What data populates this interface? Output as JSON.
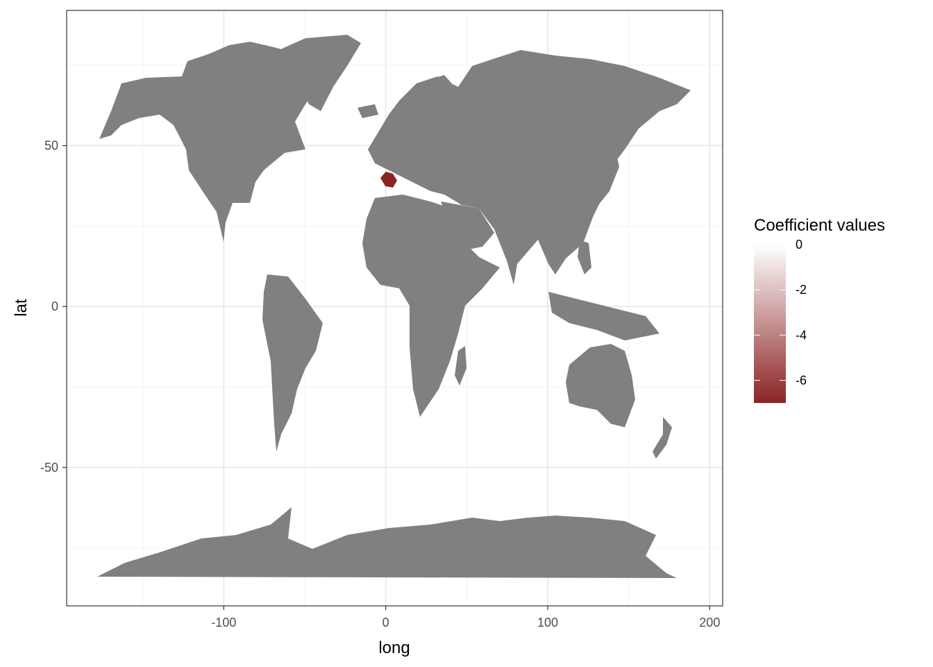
{
  "chart_data": {
    "type": "map",
    "xlabel": "long",
    "ylabel": "lat",
    "xlim": [
      -197,
      208
    ],
    "ylim": [
      -93,
      92
    ],
    "x_ticks": [
      -100,
      0,
      100,
      200
    ],
    "y_ticks": [
      -50,
      0,
      50
    ],
    "x_tick_labels": [
      "-100",
      "0",
      "100",
      "200"
    ],
    "y_tick_labels": [
      "-50",
      "0",
      "50"
    ],
    "grid": true,
    "land_color": "#808080",
    "highlighted_region": {
      "description": "Iberian region",
      "value": -7,
      "color": "#8b2323"
    },
    "legend": {
      "title": "Coefficient values",
      "position": "right",
      "breaks": [
        0,
        -2,
        -4,
        -6
      ],
      "break_labels": [
        "0",
        "-2",
        "-4",
        "-6"
      ],
      "range": [
        -7,
        0
      ],
      "low_color": "#8b2323",
      "high_color": "#ffffff"
    }
  }
}
